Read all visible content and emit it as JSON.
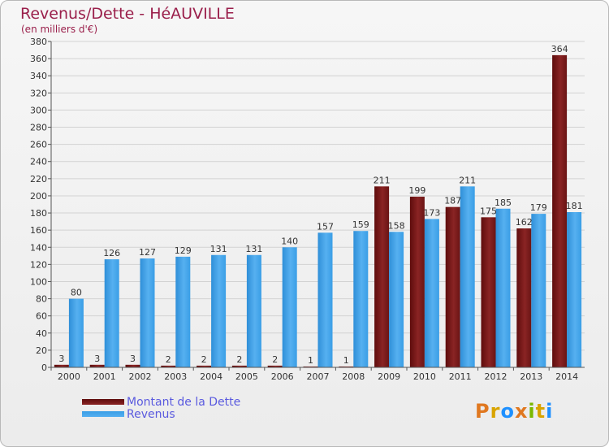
{
  "header": {
    "title": "Revenus/Dette - HéAUVILLE",
    "subtitle": "(en milliers d'€)"
  },
  "logo": {
    "text": "Proxiti",
    "colors": [
      "#e07820",
      "#d9a400",
      "#1e90ff",
      "#e07820",
      "#7ab800",
      "#d9a400",
      "#1e90ff"
    ]
  },
  "colors": {
    "dette": "#7a1515",
    "revenus": "#3a9ee6",
    "legend_text": "#5a5adf",
    "title": "#9a1f4b"
  },
  "chart_data": {
    "type": "bar",
    "title": "Revenus/Dette - HéAUVILLE",
    "subtitle": "(en milliers d'€)",
    "categories": [
      "2000",
      "2001",
      "2002",
      "2003",
      "2004",
      "2005",
      "2006",
      "2007",
      "2008",
      "2009",
      "2010",
      "2011",
      "2012",
      "2013",
      "2014"
    ],
    "series": [
      {
        "name": "Montant de la Dette",
        "values": [
          3,
          3,
          3,
          2,
          2,
          2,
          2,
          1,
          1,
          211,
          199,
          187,
          175,
          162,
          364
        ]
      },
      {
        "name": "Revenus",
        "values": [
          80,
          126,
          127,
          129,
          131,
          131,
          140,
          157,
          159,
          158,
          173,
          211,
          185,
          179,
          181
        ]
      }
    ],
    "ylim": [
      0,
      380
    ],
    "yticks": [
      0,
      20,
      40,
      60,
      80,
      100,
      120,
      140,
      160,
      180,
      200,
      220,
      240,
      260,
      280,
      300,
      320,
      340,
      360,
      380
    ],
    "grid": true,
    "legend_position": "bottom-left"
  }
}
